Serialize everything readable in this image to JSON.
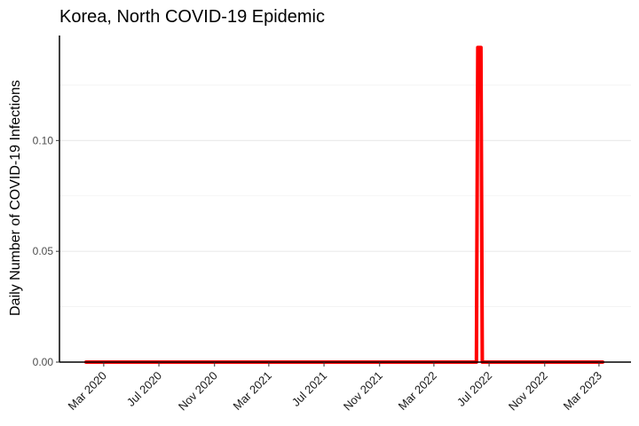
{
  "chart_data": {
    "type": "line",
    "title": "Korea, North COVID-19 Epidemic",
    "xlabel": "",
    "ylabel": "Daily Number of COVID-19 Infections",
    "x_type": "date",
    "xlim": [
      "2020-01-22",
      "2023-03-09"
    ],
    "ylim": [
      0,
      0.1474
    ],
    "x_ticks": [
      {
        "date": "2020-03-01",
        "label": "Mar 2020"
      },
      {
        "date": "2020-07-01",
        "label": "Jul 2020"
      },
      {
        "date": "2020-11-01",
        "label": "Nov 2020"
      },
      {
        "date": "2021-03-01",
        "label": "Mar 2021"
      },
      {
        "date": "2021-07-01",
        "label": "Jul 2021"
      },
      {
        "date": "2021-11-01",
        "label": "Nov 2021"
      },
      {
        "date": "2022-03-01",
        "label": "Mar 2022"
      },
      {
        "date": "2022-07-01",
        "label": "Jul 2022"
      },
      {
        "date": "2022-11-01",
        "label": "Nov 2022"
      },
      {
        "date": "2023-03-01",
        "label": "Mar 2023"
      }
    ],
    "y_ticks": [
      {
        "value": 0,
        "label": "0.00"
      },
      {
        "value": 0.05,
        "label": "0.05"
      },
      {
        "value": 0.1,
        "label": "0.10"
      }
    ],
    "y_minor_grid": [
      0.025,
      0.075,
      0.125
    ],
    "grid": "horizontal",
    "legend": "none",
    "series": [
      {
        "color": "#ff0000",
        "points": [
          {
            "x": "2020-01-22",
            "y": 0
          },
          {
            "x": "2022-06-03",
            "y": 0
          },
          {
            "x": "2022-06-06",
            "y": 0.142
          },
          {
            "x": "2022-06-13",
            "y": 0.142
          },
          {
            "x": "2022-06-16",
            "y": 0
          },
          {
            "x": "2023-03-09",
            "y": 0
          }
        ]
      }
    ]
  }
}
